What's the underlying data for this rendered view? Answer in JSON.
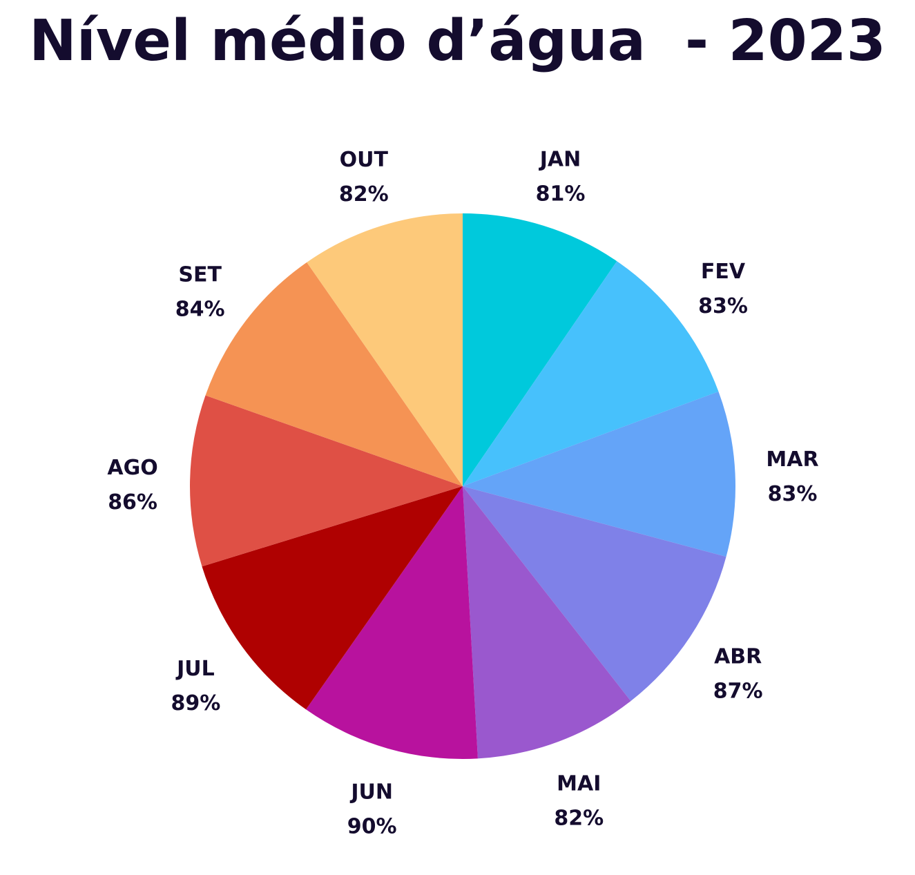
{
  "chart_data": {
    "type": "pie",
    "title": "Nível médio d’água  - 2023",
    "slices": [
      {
        "label": "JAN",
        "value_label": "81%",
        "value": 81,
        "color": "#00c9dc"
      },
      {
        "label": "FEV",
        "value_label": "83%",
        "value": 83,
        "color": "#47c1fc"
      },
      {
        "label": "MAR",
        "value_label": "83%",
        "value": 83,
        "color": "#64a4f8"
      },
      {
        "label": "ABR",
        "value_label": "87%",
        "value": 87,
        "color": "#7f81e8"
      },
      {
        "label": "MAI",
        "value_label": "82%",
        "value": 82,
        "color": "#9a58ce"
      },
      {
        "label": "JUN",
        "value_label": "90%",
        "value": 90,
        "color": "#b8129e"
      },
      {
        "label": "JUL",
        "value_label": "89%",
        "value": 89,
        "color": "#af0101"
      },
      {
        "label": "AGO",
        "value_label": "86%",
        "value": 86,
        "color": "#df5045"
      },
      {
        "label": "SET",
        "value_label": "84%",
        "value": 84,
        "color": "#f59354"
      },
      {
        "label": "OUT",
        "value_label": "82%",
        "value": 82,
        "color": "#fdc97a"
      }
    ],
    "start": "top",
    "direction": "clockwise",
    "legend": "none"
  }
}
